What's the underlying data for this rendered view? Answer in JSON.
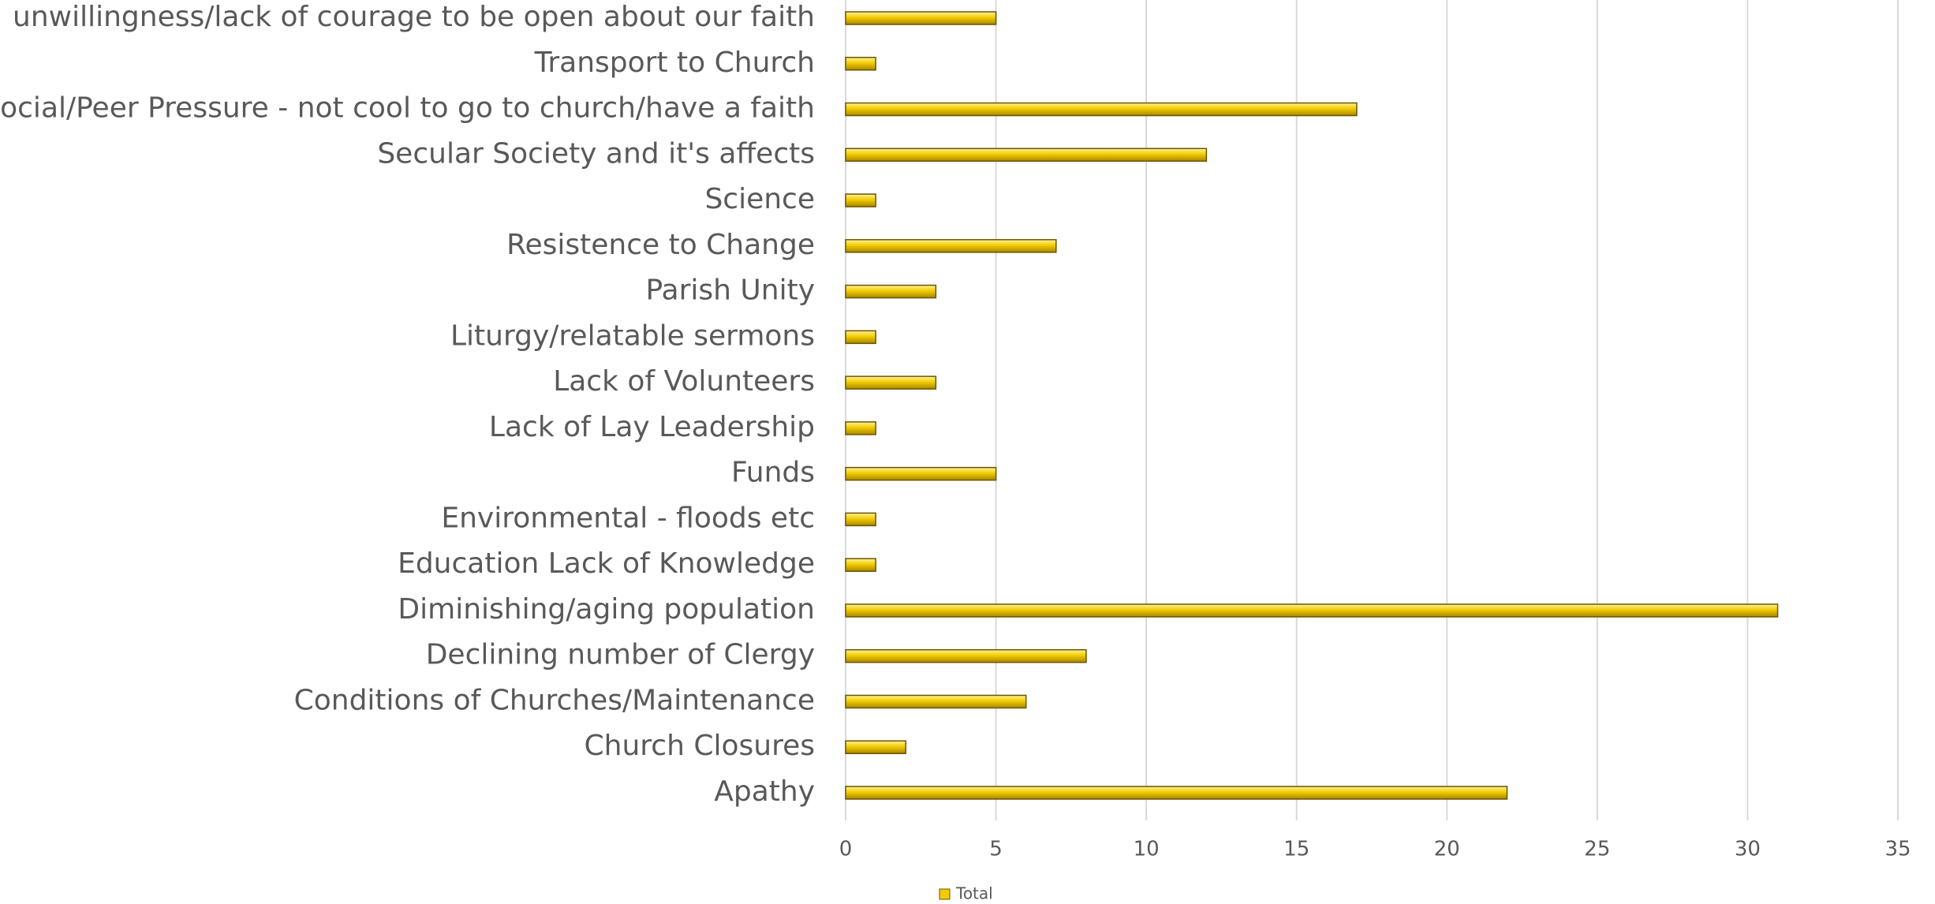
{
  "chart_data": {
    "type": "bar",
    "orientation": "horizontal",
    "categories": [
      "unwillingness/lack of courage to be open about our faith",
      "Transport to Church",
      "Social/Peer Pressure - not cool to go to church/have a faith",
      "Secular Society and it's affects",
      "Science",
      "Resistence to Change",
      "Parish Unity",
      "Liturgy/relatable sermons",
      "Lack of Volunteers",
      "Lack of Lay Leadership",
      "Funds",
      "Environmental - floods etc",
      "Education Lack of Knowledge",
      "Diminishing/aging population",
      "Declining number of Clergy",
      "Conditions of Churches/Maintenance",
      "Church Closures",
      "Apathy"
    ],
    "series": [
      {
        "name": "Total",
        "color": "#f2cc00",
        "values": [
          5,
          1,
          17,
          12,
          1,
          7,
          3,
          1,
          3,
          1,
          5,
          1,
          1,
          31,
          8,
          6,
          2,
          22
        ]
      }
    ],
    "xlim": [
      0,
      35
    ],
    "xticks": [
      0,
      5,
      10,
      15,
      20,
      25,
      30,
      35
    ],
    "grid": true,
    "legend": "bottom"
  }
}
